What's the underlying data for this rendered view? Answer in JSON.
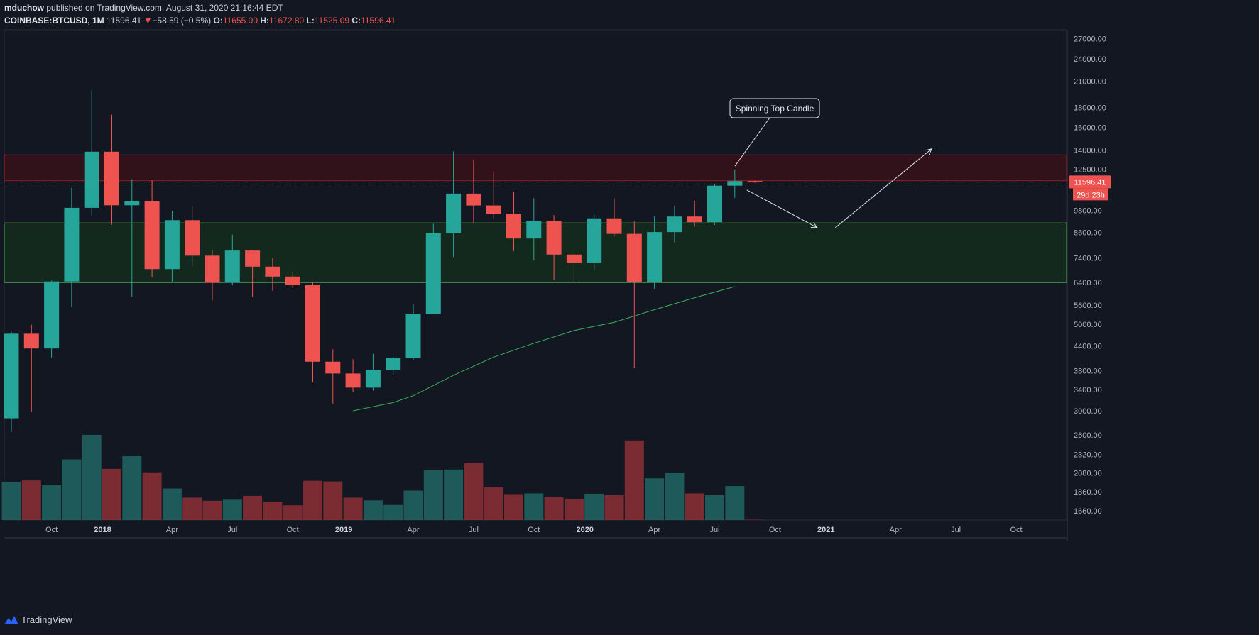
{
  "header": {
    "author": "mduchow",
    "published": "published on TradingView.com, August 31, 2020 21:16:44 EDT",
    "symbol": "COINBASE:BTCUSD, 1M",
    "last": "11596.41",
    "change_arrow": "▼",
    "change": "−58.59 (−0.5%)",
    "o_label": "O:",
    "o": "11655.00",
    "h_label": "H:",
    "h": "11672.80",
    "l_label": "L:",
    "l": "11525.09",
    "c_label": "C:",
    "c": "11596.41"
  },
  "footer": {
    "brand": "TradingView"
  },
  "colors": {
    "bg": "#131722",
    "up": "#26a69a",
    "down": "#ef5350",
    "vol_up": "#1e5a5a",
    "vol_down": "#7b2c32",
    "grid": "#1e222d",
    "text": "#b2b5be",
    "ma": "#3cae5c"
  },
  "chart_data": {
    "type": "candlestick",
    "title": "COINBASE:BTCUSD, 1M",
    "scale": "log",
    "ylim": [
      1600,
      28000
    ],
    "y_ticks": [
      "27000.00",
      "24000.00",
      "21000.00",
      "18000.00",
      "16000.00",
      "14000.00",
      "12500.00",
      "9800.00",
      "8600.00",
      "7400.00",
      "6400.00",
      "5600.00",
      "5000.00",
      "4400.00",
      "3800.00",
      "3400.00",
      "3000.00",
      "2600.00",
      "2320.00",
      "2080.00",
      "1860.00",
      "1660.00"
    ],
    "x_ticks": [
      "Oct",
      "2018",
      "Apr",
      "Jul",
      "Oct",
      "2019",
      "Apr",
      "Jul",
      "Oct",
      "2020",
      "Apr",
      "Jul",
      "Oct",
      "2021",
      "Apr",
      "Jul",
      "Oct"
    ],
    "bold_x_ticks": [
      "2018",
      "2019",
      "2020",
      "2021"
    ],
    "months": [
      "2017-08",
      "2017-09",
      "2017-10",
      "2017-11",
      "2017-12",
      "2018-01",
      "2018-02",
      "2018-03",
      "2018-04",
      "2018-05",
      "2018-06",
      "2018-07",
      "2018-08",
      "2018-09",
      "2018-10",
      "2018-11",
      "2018-12",
      "2019-01",
      "2019-02",
      "2019-03",
      "2019-04",
      "2019-05",
      "2019-06",
      "2019-07",
      "2019-08",
      "2019-09",
      "2019-10",
      "2019-11",
      "2019-12",
      "2020-01",
      "2020-02",
      "2020-03",
      "2020-04",
      "2020-05",
      "2020-06",
      "2020-07",
      "2020-08",
      "2020-09"
    ],
    "candles": [
      {
        "o": 2870,
        "h": 4790,
        "l": 2650,
        "c": 4730
      },
      {
        "o": 4730,
        "h": 4990,
        "l": 2980,
        "c": 4335
      },
      {
        "o": 4335,
        "h": 6470,
        "l": 4110,
        "c": 6440
      },
      {
        "o": 6440,
        "h": 11200,
        "l": 5540,
        "c": 9950
      },
      {
        "o": 9950,
        "h": 19890,
        "l": 9500,
        "c": 13860
      },
      {
        "o": 13860,
        "h": 17250,
        "l": 9010,
        "c": 10100
      },
      {
        "o": 10100,
        "h": 11780,
        "l": 5880,
        "c": 10330
      },
      {
        "o": 10330,
        "h": 11700,
        "l": 6600,
        "c": 6930
      },
      {
        "o": 6930,
        "h": 9780,
        "l": 6430,
        "c": 9250
      },
      {
        "o": 9250,
        "h": 10000,
        "l": 7060,
        "c": 7500
      },
      {
        "o": 7500,
        "h": 7770,
        "l": 5760,
        "c": 6390
      },
      {
        "o": 6390,
        "h": 8490,
        "l": 6300,
        "c": 7730
      },
      {
        "o": 7730,
        "h": 7770,
        "l": 5880,
        "c": 7030
      },
      {
        "o": 7030,
        "h": 7400,
        "l": 6100,
        "c": 6630
      },
      {
        "o": 6630,
        "h": 6800,
        "l": 6200,
        "c": 6300
      },
      {
        "o": 6300,
        "h": 6400,
        "l": 3550,
        "c": 4010
      },
      {
        "o": 4010,
        "h": 4310,
        "l": 3130,
        "c": 3740
      },
      {
        "o": 3740,
        "h": 4070,
        "l": 3350,
        "c": 3440
      },
      {
        "o": 3440,
        "h": 4200,
        "l": 3380,
        "c": 3820
      },
      {
        "o": 3820,
        "h": 4130,
        "l": 3700,
        "c": 4100
      },
      {
        "o": 4100,
        "h": 5630,
        "l": 4050,
        "c": 5320
      },
      {
        "o": 5320,
        "h": 9060,
        "l": 5320,
        "c": 8570
      },
      {
        "o": 8570,
        "h": 13880,
        "l": 7450,
        "c": 10820
      },
      {
        "o": 10820,
        "h": 13200,
        "l": 9070,
        "c": 10090
      },
      {
        "o": 10090,
        "h": 12330,
        "l": 9320,
        "c": 9600
      },
      {
        "o": 9600,
        "h": 10950,
        "l": 7710,
        "c": 8300
      },
      {
        "o": 8300,
        "h": 10540,
        "l": 7300,
        "c": 9200
      },
      {
        "o": 9200,
        "h": 9530,
        "l": 6500,
        "c": 7550
      },
      {
        "o": 7550,
        "h": 7760,
        "l": 6430,
        "c": 7190
      },
      {
        "o": 7190,
        "h": 9580,
        "l": 6860,
        "c": 9350
      },
      {
        "o": 9350,
        "h": 10520,
        "l": 8430,
        "c": 8530
      },
      {
        "o": 8530,
        "h": 9180,
        "l": 3860,
        "c": 6410
      },
      {
        "o": 6410,
        "h": 9470,
        "l": 6160,
        "c": 8620
      },
      {
        "o": 8620,
        "h": 10070,
        "l": 8110,
        "c": 9450
      },
      {
        "o": 9450,
        "h": 10380,
        "l": 8900,
        "c": 9140
      },
      {
        "o": 9140,
        "h": 11430,
        "l": 9000,
        "c": 11340
      },
      {
        "o": 11340,
        "h": 12480,
        "l": 10550,
        "c": 11655
      },
      {
        "o": 11655,
        "h": 11673,
        "l": 11525,
        "c": 11596
      }
    ],
    "volume_ylim": [
      0,
      3500
    ],
    "volume": [
      {
        "v": 1090,
        "up": true
      },
      {
        "v": 1130,
        "up": false
      },
      {
        "v": 990,
        "up": true
      },
      {
        "v": 1730,
        "up": true
      },
      {
        "v": 2430,
        "up": true
      },
      {
        "v": 1460,
        "up": false
      },
      {
        "v": 1820,
        "up": true
      },
      {
        "v": 1360,
        "up": false
      },
      {
        "v": 900,
        "up": true
      },
      {
        "v": 640,
        "up": false
      },
      {
        "v": 550,
        "up": false
      },
      {
        "v": 580,
        "up": true
      },
      {
        "v": 690,
        "up": false
      },
      {
        "v": 520,
        "up": false
      },
      {
        "v": 420,
        "up": false
      },
      {
        "v": 1120,
        "up": false
      },
      {
        "v": 1100,
        "up": false
      },
      {
        "v": 640,
        "up": false
      },
      {
        "v": 560,
        "up": true
      },
      {
        "v": 430,
        "up": true
      },
      {
        "v": 840,
        "up": true
      },
      {
        "v": 1420,
        "up": true
      },
      {
        "v": 1440,
        "up": true
      },
      {
        "v": 1620,
        "up": false
      },
      {
        "v": 930,
        "up": false
      },
      {
        "v": 740,
        "up": false
      },
      {
        "v": 760,
        "up": true
      },
      {
        "v": 650,
        "up": false
      },
      {
        "v": 590,
        "up": false
      },
      {
        "v": 750,
        "up": true
      },
      {
        "v": 710,
        "up": false
      },
      {
        "v": 2270,
        "up": false
      },
      {
        "v": 1190,
        "up": true
      },
      {
        "v": 1350,
        "up": true
      },
      {
        "v": 760,
        "up": false
      },
      {
        "v": 710,
        "up": true
      },
      {
        "v": 970,
        "up": true
      },
      {
        "v": 10,
        "up": false
      }
    ],
    "moving_average": {
      "name": "MA",
      "points": [
        [
          17,
          3000
        ],
        [
          19,
          3150
        ],
        [
          20,
          3280
        ],
        [
          22,
          3700
        ],
        [
          24,
          4120
        ],
        [
          26,
          4470
        ],
        [
          28,
          4820
        ],
        [
          30,
          5060
        ],
        [
          32,
          5450
        ],
        [
          34,
          5850
        ],
        [
          36,
          6250
        ]
      ]
    },
    "resistance_zone": {
      "from": 11700,
      "to": 13600
    },
    "support_zone": {
      "from": 6400,
      "to": 9100
    },
    "last_price_label": "11596.41",
    "countdown_label": "29d 23h",
    "annotations": [
      {
        "type": "callout",
        "text": "Spinning Top Candle"
      },
      {
        "type": "arrow",
        "from": [
          36.6,
          11050
        ],
        "to": [
          40.1,
          8850
        ]
      },
      {
        "type": "arrow",
        "from": [
          41.0,
          8850
        ],
        "to": [
          45.8,
          14100
        ]
      }
    ]
  }
}
